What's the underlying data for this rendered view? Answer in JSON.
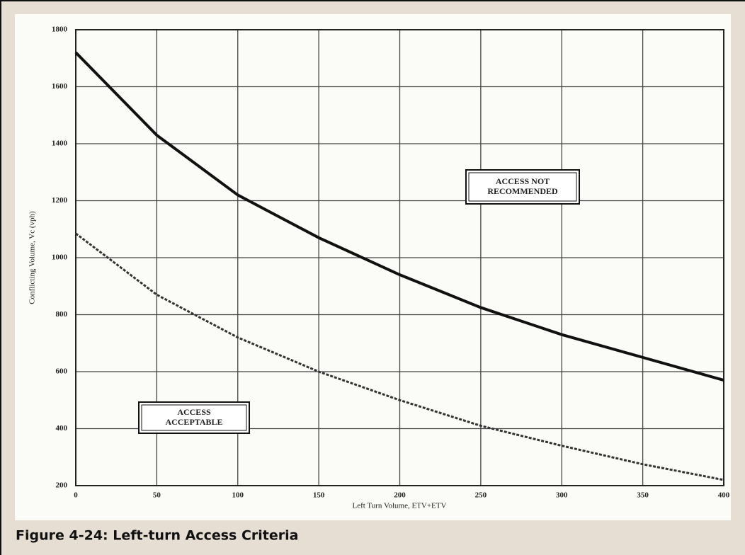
{
  "chart_data": {
    "type": "line",
    "caption": "Figure 4-24: Left-turn Access Criteria",
    "x_label": "Left Turn Volume, ETV+ETV",
    "y_label": "Conflicting Volume, Vc (vph)",
    "x": [
      0,
      50,
      100,
      150,
      200,
      250,
      300,
      350,
      400
    ],
    "series": [
      {
        "color": "#111111",
        "dash": "solid",
        "values": [
          1720,
          1430,
          1220,
          1070,
          940,
          825,
          730,
          650,
          570
        ]
      },
      {
        "color": "#333333",
        "dash": "dashed",
        "values": [
          1085,
          870,
          720,
          600,
          500,
          410,
          340,
          275,
          220
        ]
      }
    ],
    "annotations": [
      [
        "ACCESS NOT",
        "RECOMMENDED"
      ],
      [
        "ACCESS",
        "ACCEPTABLE"
      ]
    ],
    "xlim": [
      0,
      400
    ],
    "xticks": [
      0,
      50,
      100,
      150,
      200,
      250,
      300,
      350,
      400
    ],
    "ylim": [
      200,
      1800
    ],
    "yticks": [
      200,
      400,
      600,
      800,
      1000,
      1200,
      1400,
      1600,
      1800
    ],
    "grid": true
  }
}
